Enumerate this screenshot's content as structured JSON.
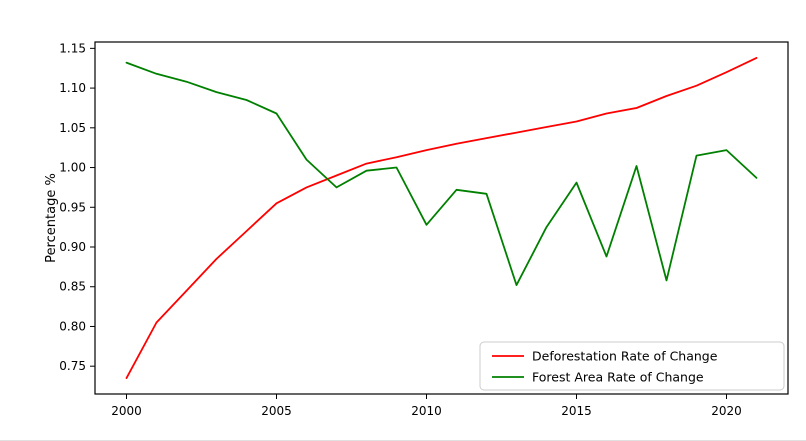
{
  "figure": {
    "background": "#ffffff",
    "spine_color": "#000000"
  },
  "chart_data": {
    "type": "line",
    "title": "",
    "xlabel": "",
    "ylabel": "Percentage %",
    "grid": false,
    "legend_position": "lower right",
    "xlim": [
      1998.95,
      2022.05
    ],
    "ylim": [
      0.715,
      1.158
    ],
    "xticks": [
      2000,
      2005,
      2010,
      2015,
      2020
    ],
    "yticks": [
      0.75,
      0.8,
      0.85,
      0.9,
      0.95,
      1.0,
      1.05,
      1.1,
      1.15
    ],
    "x": [
      2000,
      2001,
      2002,
      2003,
      2004,
      2005,
      2006,
      2007,
      2008,
      2009,
      2010,
      2011,
      2012,
      2013,
      2014,
      2015,
      2016,
      2017,
      2018,
      2019,
      2020,
      2021
    ],
    "series": [
      {
        "name": "Deforestation Rate of Change",
        "color": "#ff0000",
        "values": [
          0.735,
          0.805,
          0.845,
          0.885,
          0.92,
          0.955,
          0.975,
          0.99,
          1.005,
          1.013,
          1.022,
          1.03,
          1.037,
          1.044,
          1.051,
          1.058,
          1.068,
          1.075,
          1.09,
          1.103,
          1.12,
          1.138
        ]
      },
      {
        "name": "Forest Area Rate of Change",
        "color": "#008000",
        "values": [
          1.132,
          1.118,
          1.108,
          1.095,
          1.085,
          1.068,
          1.01,
          0.975,
          0.996,
          1.0,
          0.928,
          0.972,
          0.967,
          0.852,
          0.925,
          0.981,
          0.888,
          1.002,
          0.858,
          1.015,
          1.022,
          0.987
        ]
      }
    ]
  }
}
